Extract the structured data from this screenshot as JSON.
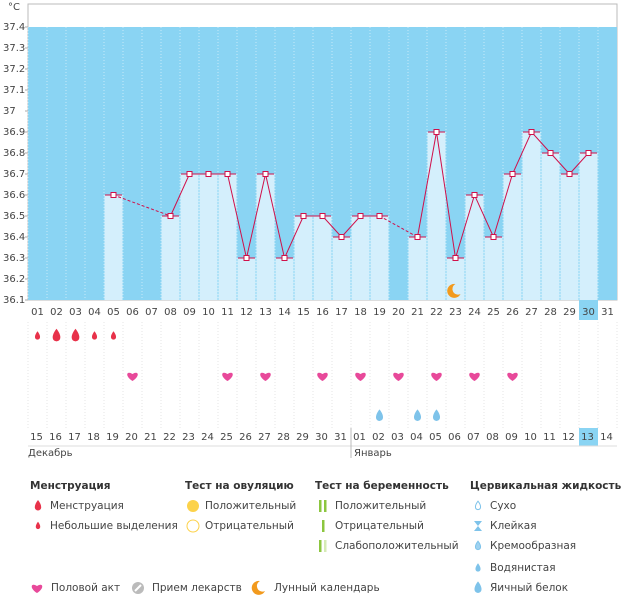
{
  "chart_data": {
    "type": "line",
    "y_label": "°C",
    "categories": [
      "01",
      "02",
      "03",
      "04",
      "05",
      "06",
      "07",
      "08",
      "09",
      "10",
      "11",
      "12",
      "13",
      "14",
      "15",
      "16",
      "17",
      "18",
      "19",
      "20",
      "21",
      "22",
      "23",
      "24",
      "25",
      "26",
      "27",
      "28",
      "29",
      "30",
      "31"
    ],
    "series": [
      {
        "color": "#d0104a",
        "values": [
          null,
          null,
          null,
          null,
          36.6,
          null,
          null,
          36.5,
          36.7,
          36.7,
          36.7,
          36.3,
          36.7,
          36.3,
          36.5,
          36.5,
          36.4,
          36.5,
          36.5,
          null,
          36.4,
          36.9,
          36.3,
          36.6,
          36.4,
          36.7,
          36.9,
          36.8,
          36.7,
          36.8,
          null
        ]
      }
    ],
    "ylim": [
      36.1,
      37.4
    ],
    "yticks": [
      36.1,
      36.2,
      36.3,
      36.4,
      36.5,
      36.6,
      36.7,
      36.8,
      36.9,
      {
        "value": 37.0,
        "label": "37"
      },
      37.1,
      37.2,
      37.3,
      37.4
    ],
    "selected_index": 29,
    "bar_color": "#d4effc",
    "background_color": "#8ad4f3"
  },
  "symbols": {
    "menstruation": {
      "01": "light",
      "02": "heavy",
      "03": "heavy",
      "04": "light",
      "05": "light"
    },
    "intercourse": [
      "06",
      "11",
      "13",
      "16",
      "18",
      "20",
      "22",
      "24",
      "26"
    ],
    "cervical_fluid": {
      "19": "egg_white",
      "21": "egg_white",
      "22": "egg_white"
    },
    "lunar": [
      "23"
    ]
  },
  "calendar": {
    "dates": [
      {
        "label": "15"
      },
      {
        "label": "16"
      },
      {
        "label": "17"
      },
      {
        "label": "18"
      },
      {
        "label": "19",
        "weekend": true
      },
      {
        "label": "20",
        "weekend": true
      },
      {
        "label": "21"
      },
      {
        "label": "22"
      },
      {
        "label": "23"
      },
      {
        "label": "24"
      },
      {
        "label": "25"
      },
      {
        "label": "26",
        "weekend": true
      },
      {
        "label": "27",
        "weekend": true
      },
      {
        "label": "28"
      },
      {
        "label": "29"
      },
      {
        "label": "30"
      },
      {
        "label": "31"
      },
      {
        "label": "01"
      },
      {
        "label": "02",
        "weekend": true
      },
      {
        "label": "03",
        "weekend": true
      },
      {
        "label": "04"
      },
      {
        "label": "05"
      },
      {
        "label": "06"
      },
      {
        "label": "07"
      },
      {
        "label": "08"
      },
      {
        "label": "09",
        "weekend": true
      },
      {
        "label": "10",
        "weekend": true
      },
      {
        "label": "11"
      },
      {
        "label": "12"
      },
      {
        "label": "13"
      },
      {
        "label": "14"
      }
    ],
    "months": [
      {
        "label": "Декабрь",
        "start": 0
      },
      {
        "label": "Январь",
        "start": 17
      }
    ]
  },
  "legend": {
    "groups": [
      {
        "title": "Менструация",
        "items": [
          "Менструация",
          "Небольшие выделения"
        ]
      },
      {
        "title": "Тест на овуляцию",
        "items": [
          "Положительный",
          "Отрицательный"
        ]
      },
      {
        "title": "Тест на беременность",
        "items": [
          "Положительный",
          "Отрицательный",
          "Слабоположительный"
        ]
      },
      {
        "title": "Цервикальная жидкость",
        "items": [
          "Сухо",
          "Клейкая",
          "Кремообразная",
          "Водянистая",
          "Яичный белок"
        ]
      }
    ],
    "extra": [
      "Половой акт",
      "Прием лекарств",
      "Лунный календарь"
    ]
  }
}
